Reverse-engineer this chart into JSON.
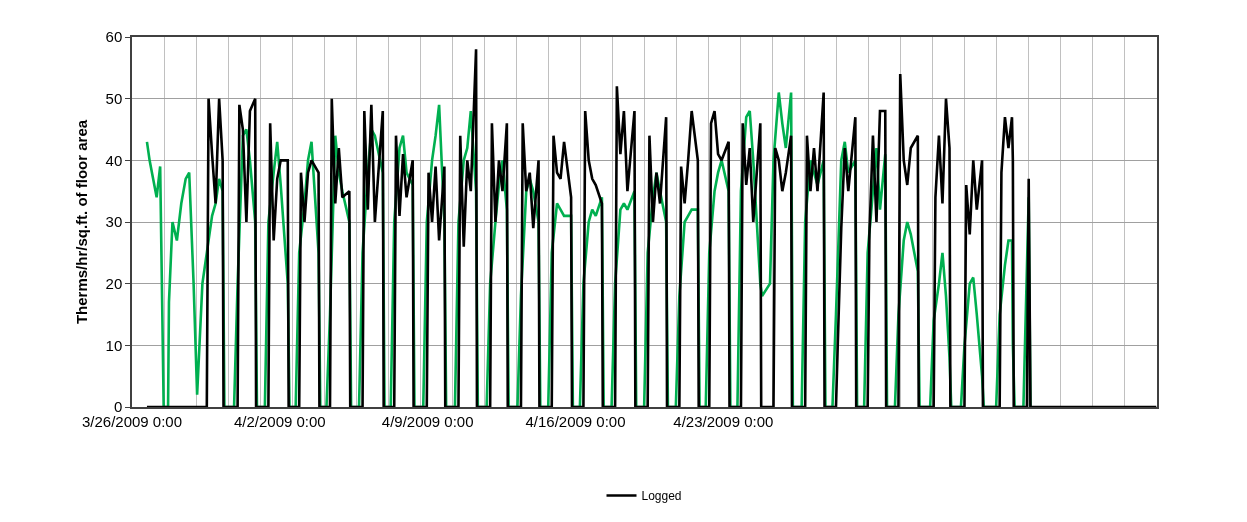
{
  "chart_data": {
    "type": "line",
    "ylabel": "Therms/hr/sq.ft. of floor area",
    "xlim": [
      "2009-03-26T00:00",
      "2009-05-13T12:48"
    ],
    "xticks": [
      {
        "value": "2009-03-26",
        "label": "3/26/2009 0:00"
      },
      {
        "value": "2009-04-02",
        "label": "4/2/2009 0:00"
      },
      {
        "value": "2009-04-09",
        "label": "4/9/2009 0:00"
      },
      {
        "value": "2009-04-16",
        "label": "4/16/2009 0:00"
      },
      {
        "value": "2009-04-23",
        "label": "4/23/2009 0:00"
      }
    ],
    "ylim": [
      0,
      60
    ],
    "yticks": [
      0,
      10,
      20,
      30,
      40,
      50,
      60
    ],
    "grid": true,
    "legend": "bottom",
    "marker": "none",
    "line_style": "solid",
    "series": [
      {
        "color": "#00b050",
        "x": [
          "2009-03-26T17:00",
          "2009-03-26T20:00",
          "2009-03-27T00:00",
          "2009-03-27T04:00",
          "2009-03-27T08:00",
          "2009-03-27T12:00",
          "2009-03-27T17:00",
          "2009-03-27T18:00",
          "2009-03-27T22:00",
          "2009-03-28T03:00",
          "2009-03-28T08:00",
          "2009-03-28T13:00",
          "2009-03-28T17:00",
          "2009-03-28T22:00",
          "2009-03-29T02:00",
          "2009-03-29T08:00",
          "2009-03-29T13:00",
          "2009-03-29T19:00",
          "2009-03-29T23:00",
          "2009-03-30T03:00",
          "2009-03-30T07:00",
          "2009-03-30T09:00",
          "2009-03-30T20:00",
          "2009-03-31T00:00",
          "2009-03-31T06:00",
          "2009-03-31T10:00",
          "2009-03-31T14:00",
          "2009-03-31T20:00",
          "2009-03-31T22:00",
          "2009-04-01T07:00",
          "2009-04-01T11:00",
          "2009-04-01T17:00",
          "2009-04-01T21:00",
          "2009-04-02T01:00",
          "2009-04-02T09:00",
          "2009-04-02T11:00",
          "2009-04-02T18:00",
          "2009-04-02T22:00",
          "2009-04-03T04:00",
          "2009-04-03T08:00",
          "2009-04-03T12:00",
          "2009-04-03T20:00",
          "2009-04-03T22:00",
          "2009-04-04T05:00",
          "2009-04-04T09:00",
          "2009-04-04T15:00",
          "2009-04-04T19:00",
          "2009-04-04T23:00",
          "2009-04-05T07:00",
          "2009-04-05T09:00",
          "2009-04-05T18:00",
          "2009-04-05T22:00",
          "2009-04-06T04:00",
          "2009-04-06T08:00",
          "2009-04-06T12:00",
          "2009-04-06T21:00",
          "2009-04-06T23:00",
          "2009-04-07T06:00",
          "2009-04-07T10:00",
          "2009-04-07T16:00",
          "2009-04-07T20:00",
          "2009-04-08T00:00",
          "2009-04-08T07:00",
          "2009-04-08T09:00",
          "2009-04-08T19:00",
          "2009-04-08T23:00",
          "2009-04-09T05:00",
          "2009-04-09T09:00",
          "2009-04-09T13:00",
          "2009-04-09T19:00",
          "2009-04-09T21:00",
          "2009-04-10T07:00",
          "2009-04-10T11:00",
          "2009-04-10T17:00",
          "2009-04-10T21:00",
          "2009-04-11T01:00",
          "2009-04-11T07:00",
          "2009-04-11T09:00",
          "2009-04-11T19:00",
          "2009-04-11T23:00",
          "2009-04-12T05:00",
          "2009-04-12T09:00",
          "2009-04-12T13:00",
          "2009-04-12T18:00",
          "2009-04-12T20:00",
          "2009-04-13T06:00",
          "2009-04-13T10:00",
          "2009-04-13T16:00",
          "2009-04-13T20:00",
          "2009-04-14T00:00",
          "2009-04-14T06:00",
          "2009-04-14T08:00",
          "2009-04-14T17:00",
          "2009-04-14T21:00",
          "2009-04-15T03:00",
          "2009-04-15T07:00",
          "2009-04-15T11:00",
          "2009-04-15T19:00",
          "2009-04-15T21:00",
          "2009-04-16T05:00",
          "2009-04-16T09:00",
          "2009-04-16T15:00",
          "2009-04-16T19:00",
          "2009-04-16T23:00",
          "2009-04-17T06:00",
          "2009-04-17T08:00",
          "2009-04-17T17:00",
          "2009-04-17T21:00",
          "2009-04-18T03:00",
          "2009-04-18T07:00",
          "2009-04-18T11:00",
          "2009-04-18T19:00",
          "2009-04-18T21:00",
          "2009-04-19T06:00",
          "2009-04-19T10:00",
          "2009-04-19T16:00",
          "2009-04-19T20:00",
          "2009-04-20T00:00",
          "2009-04-20T07:00",
          "2009-04-20T09:00",
          "2009-04-20T18:00",
          "2009-04-20T22:00",
          "2009-04-21T04:00",
          "2009-04-21T08:00",
          "2009-04-21T12:00",
          "2009-04-21T19:00",
          "2009-04-21T21:00",
          "2009-04-22T04:00",
          "2009-04-22T08:00",
          "2009-04-22T14:00",
          "2009-04-22T18:00",
          "2009-04-22T22:00",
          "2009-04-23T06:00",
          "2009-04-23T08:00",
          "2009-04-23T16:00",
          "2009-04-23T20:00",
          "2009-04-24T02:00",
          "2009-04-24T06:00",
          "2009-04-24T10:00",
          "2009-04-24T18:00",
          "2009-04-24T20:00",
          "2009-04-25T05:00",
          "2009-04-25T09:00",
          "2009-04-25T15:00",
          "2009-04-25T19:00",
          "2009-04-25T23:00",
          "2009-04-26T05:00",
          "2009-04-26T07:00",
          "2009-04-26T17:00",
          "2009-04-26T21:00",
          "2009-04-27T03:00",
          "2009-04-27T07:00",
          "2009-04-27T11:00",
          "2009-04-27T18:00",
          "2009-04-27T20:00",
          "2009-04-28T04:00",
          "2009-04-28T08:00",
          "2009-04-28T14:00",
          "2009-04-28T18:00",
          "2009-04-28T22:00",
          "2009-04-29T06:00",
          "2009-04-29T08:00",
          "2009-04-29T16:00",
          "2009-04-29T20:00",
          "2009-04-30T02:00",
          "2009-04-30T06:00",
          "2009-04-30T10:00",
          "2009-04-30T16:00",
          "2009-04-30T18:00",
          "2009-05-01T03:00",
          "2009-05-01T07:00",
          "2009-05-01T13:00",
          "2009-05-01T17:00",
          "2009-05-01T21:00",
          "2009-05-02T05:00",
          "2009-05-02T07:00",
          "2009-05-02T19:00",
          "2009-05-02T23:00",
          "2009-05-03T05:00",
          "2009-05-03T09:00",
          "2009-05-03T13:00",
          "2009-05-03T17:00",
          "2009-05-03T19:00",
          "2009-05-04T06:00",
          "2009-05-04T10:00",
          "2009-05-04T16:00",
          "2009-05-04T20:00",
          "2009-05-05T00:00",
          "2009-05-05T06:00",
          "2009-05-05T08:00",
          "2009-05-05T22:00",
          "2009-05-06T02:00",
          "2009-05-06T08:00",
          "2009-05-06T12:00",
          "2009-05-06T16:00",
          "2009-05-06T17:00",
          "2009-05-06T19:00",
          "2009-05-07T05:00",
          "2009-05-07T11:00",
          "2009-05-07T13:00"
        ],
        "values": [
          43,
          40,
          37,
          34,
          39,
          0,
          0,
          17,
          30,
          27,
          33,
          37,
          38,
          20,
          2,
          20,
          25,
          31,
          33,
          37,
          35,
          0,
          0,
          20,
          44,
          45,
          40,
          30,
          0,
          0,
          30,
          38,
          43,
          36,
          20,
          0,
          0,
          25,
          33,
          40,
          43,
          25,
          0,
          0,
          15,
          44,
          38,
          35,
          30,
          0,
          0,
          25,
          38,
          45,
          44,
          38,
          0,
          0,
          30,
          42,
          44,
          38,
          36,
          0,
          0,
          30,
          40,
          44,
          49,
          30,
          0,
          0,
          30,
          40,
          42,
          48,
          35,
          0,
          0,
          20,
          30,
          36,
          40,
          32,
          0,
          0,
          18,
          35,
          37,
          35,
          30,
          0,
          0,
          25,
          33,
          32,
          31,
          31,
          0,
          0,
          20,
          30,
          32,
          31,
          34,
          0,
          0,
          20,
          32,
          33,
          32,
          35,
          0,
          0,
          25,
          34,
          38,
          35,
          30,
          0,
          0,
          18,
          30,
          31,
          32,
          32,
          0,
          0,
          25,
          35,
          38,
          40,
          35,
          0,
          0,
          35,
          47,
          48,
          40,
          20,
          18,
          20,
          40,
          51,
          46,
          42,
          51,
          0,
          0,
          30,
          40,
          38,
          36,
          40,
          0,
          0,
          15,
          40,
          43,
          38,
          40,
          0,
          0,
          25,
          35,
          42,
          32,
          41,
          0,
          0,
          15,
          27,
          30,
          28,
          22,
          0,
          0,
          14,
          20,
          25,
          18,
          8,
          0,
          0,
          10,
          20,
          21,
          15,
          5,
          0,
          0,
          15,
          23,
          27,
          27,
          10,
          0,
          0,
          34,
          0
        ]
      },
      {
        "name": "Logged",
        "color": "#000000",
        "x": [
          "2009-03-26T17:00",
          "2009-03-29T13:00",
          "2009-03-29T15:00",
          "2009-03-29T19:00",
          "2009-03-29T23:00",
          "2009-03-30T03:00",
          "2009-03-30T07:00",
          "2009-03-30T08:00",
          "2009-03-31T00:00",
          "2009-03-31T02:00",
          "2009-03-31T06:00",
          "2009-03-31T10:00",
          "2009-03-31T14:00",
          "2009-03-31T20:00",
          "2009-03-31T21:00",
          "2009-04-01T11:00",
          "2009-04-01T13:00",
          "2009-04-01T17:00",
          "2009-04-01T21:00",
          "2009-04-02T01:00",
          "2009-04-02T09:00",
          "2009-04-02T10:00",
          "2009-04-02T22:00",
          "2009-04-03T00:00",
          "2009-04-03T04:00",
          "2009-04-03T08:00",
          "2009-04-03T12:00",
          "2009-04-03T20:00",
          "2009-04-03T21:00",
          "2009-04-04T09:00",
          "2009-04-04T11:00",
          "2009-04-04T15:00",
          "2009-04-04T19:00",
          "2009-04-04T23:00",
          "2009-04-05T07:00",
          "2009-04-05T08:00",
          "2009-04-05T22:00",
          "2009-04-06T00:00",
          "2009-04-06T04:00",
          "2009-04-06T08:00",
          "2009-04-06T12:00",
          "2009-04-06T21:00",
          "2009-04-06T22:00",
          "2009-04-07T10:00",
          "2009-04-07T12:00",
          "2009-04-07T16:00",
          "2009-04-07T20:00",
          "2009-04-08T00:00",
          "2009-04-08T07:00",
          "2009-04-08T08:00",
          "2009-04-08T23:00",
          "2009-04-09T01:00",
          "2009-04-09T05:00",
          "2009-04-09T09:00",
          "2009-04-09T13:00",
          "2009-04-09T19:00",
          "2009-04-09T20:00",
          "2009-04-10T11:00",
          "2009-04-10T13:00",
          "2009-04-10T17:00",
          "2009-04-10T21:00",
          "2009-04-11T01:00",
          "2009-04-11T07:00",
          "2009-04-11T08:00",
          "2009-04-11T23:00",
          "2009-04-12T01:00",
          "2009-04-12T05:00",
          "2009-04-12T09:00",
          "2009-04-12T13:00",
          "2009-04-12T18:00",
          "2009-04-12T19:00",
          "2009-04-13T10:00",
          "2009-04-13T12:00",
          "2009-04-13T16:00",
          "2009-04-13T20:00",
          "2009-04-14T00:00",
          "2009-04-14T06:00",
          "2009-04-14T07:00",
          "2009-04-14T21:00",
          "2009-04-14T23:00",
          "2009-04-15T03:00",
          "2009-04-15T07:00",
          "2009-04-15T11:00",
          "2009-04-15T19:00",
          "2009-04-15T20:00",
          "2009-04-16T09:00",
          "2009-04-16T11:00",
          "2009-04-16T15:00",
          "2009-04-16T19:00",
          "2009-04-16T23:00",
          "2009-04-17T06:00",
          "2009-04-17T07:00",
          "2009-04-17T21:00",
          "2009-04-17T23:00",
          "2009-04-18T03:00",
          "2009-04-18T07:00",
          "2009-04-18T11:00",
          "2009-04-18T19:00",
          "2009-04-18T20:00",
          "2009-04-19T10:00",
          "2009-04-19T12:00",
          "2009-04-19T16:00",
          "2009-04-19T20:00",
          "2009-04-20T00:00",
          "2009-04-20T07:00",
          "2009-04-20T08:00",
          "2009-04-20T22:00",
          "2009-04-21T00:00",
          "2009-04-21T04:00",
          "2009-04-21T08:00",
          "2009-04-21T12:00",
          "2009-04-21T19:00",
          "2009-04-21T20:00",
          "2009-04-22T08:00",
          "2009-04-22T10:00",
          "2009-04-22T14:00",
          "2009-04-22T18:00",
          "2009-04-22T22:00",
          "2009-04-23T06:00",
          "2009-04-23T07:00",
          "2009-04-23T20:00",
          "2009-04-23T22:00",
          "2009-04-24T02:00",
          "2009-04-24T06:00",
          "2009-04-24T10:00",
          "2009-04-24T18:00",
          "2009-04-24T19:00",
          "2009-04-25T09:00",
          "2009-04-25T11:00",
          "2009-04-25T15:00",
          "2009-04-25T19:00",
          "2009-04-25T23:00",
          "2009-04-26T05:00",
          "2009-04-26T06:00",
          "2009-04-26T21:00",
          "2009-04-26T23:00",
          "2009-04-27T03:00",
          "2009-04-27T07:00",
          "2009-04-27T11:00",
          "2009-04-27T18:00",
          "2009-04-27T19:00",
          "2009-04-28T08:00",
          "2009-04-28T10:00",
          "2009-04-28T14:00",
          "2009-04-28T18:00",
          "2009-04-28T22:00",
          "2009-04-29T06:00",
          "2009-04-29T07:00",
          "2009-04-29T20:00",
          "2009-04-29T22:00",
          "2009-04-30T02:00",
          "2009-04-30T06:00",
          "2009-04-30T10:00",
          "2009-04-30T16:00",
          "2009-04-30T17:00",
          "2009-05-01T07:00",
          "2009-05-01T09:00",
          "2009-05-01T13:00",
          "2009-05-01T17:00",
          "2009-05-01T21:00",
          "2009-05-02T05:00",
          "2009-05-02T06:00",
          "2009-05-02T23:00",
          "2009-05-03T01:00",
          "2009-05-03T05:00",
          "2009-05-03T09:00",
          "2009-05-03T13:00",
          "2009-05-03T17:00",
          "2009-05-03T18:00",
          "2009-05-04T10:00",
          "2009-05-04T12:00",
          "2009-05-04T16:00",
          "2009-05-04T20:00",
          "2009-05-05T00:00",
          "2009-05-05T06:00",
          "2009-05-05T07:00",
          "2009-05-06T02:00",
          "2009-05-06T04:00",
          "2009-05-06T08:00",
          "2009-05-06T12:00",
          "2009-05-06T16:00",
          "2009-05-06T17:00",
          "2009-05-06T18:00",
          "2009-05-07T09:00",
          "2009-05-07T11:00",
          "2009-05-07T13:00",
          "2009-05-13T12:00"
        ],
        "values": [
          0,
          0,
          50,
          41,
          33,
          50,
          40,
          0,
          0,
          49,
          45,
          30,
          48,
          50,
          0,
          0,
          46,
          27,
          37,
          40,
          40,
          0,
          0,
          38,
          30,
          38,
          40,
          38,
          0,
          0,
          50,
          33,
          42,
          34,
          35,
          0,
          0,
          48,
          32,
          49,
          30,
          48,
          0,
          0,
          44,
          31,
          41,
          34,
          40,
          0,
          0,
          38,
          30,
          39,
          27,
          39,
          0,
          0,
          44,
          26,
          40,
          35,
          58,
          0,
          0,
          46,
          30,
          40,
          35,
          46,
          0,
          0,
          46,
          35,
          38,
          29,
          40,
          0,
          0,
          44,
          38,
          37,
          43,
          34,
          0,
          0,
          48,
          40,
          37,
          36,
          33,
          0,
          0,
          52,
          41,
          48,
          35,
          48,
          0,
          0,
          44,
          30,
          38,
          33,
          47,
          0,
          0,
          39,
          33,
          40,
          48,
          40,
          0,
          0,
          46,
          48,
          41,
          40,
          43,
          0,
          0,
          46,
          36,
          42,
          30,
          46,
          0,
          0,
          42,
          40,
          35,
          38,
          44,
          0,
          0,
          44,
          35,
          42,
          35,
          51,
          0,
          0,
          10,
          29,
          42,
          35,
          47,
          0,
          0,
          28,
          44,
          30,
          48,
          48,
          0,
          0,
          54,
          40,
          36,
          42,
          44,
          0,
          0,
          34,
          44,
          33,
          50,
          42,
          0,
          0,
          36,
          28,
          40,
          32,
          40,
          0,
          0,
          38,
          47,
          42,
          47,
          40,
          0,
          0,
          37,
          0,
          0
        ]
      }
    ]
  }
}
